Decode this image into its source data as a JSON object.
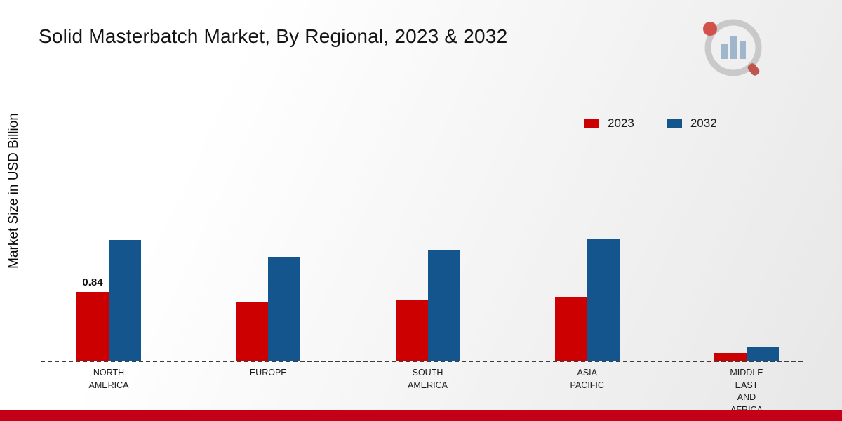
{
  "chart_data": {
    "type": "bar",
    "title": "Solid Masterbatch Market, By Regional, 2023 & 2032",
    "xlabel": "",
    "ylabel": "Market Size in USD Billion",
    "ylim": [
      0,
      1.6
    ],
    "grid": false,
    "legend_position": "top-right",
    "categories": [
      "NORTH AMERICA",
      "EUROPE",
      "SOUTH AMERICA",
      "ASIA PACIFIC",
      "MIDDLE EAST AND AFRICA"
    ],
    "series": [
      {
        "name": "2023",
        "color": "#cc0000",
        "values": [
          0.84,
          0.72,
          0.75,
          0.78,
          0.1
        ]
      },
      {
        "name": "2032",
        "color": "#15558d",
        "values": [
          1.47,
          1.26,
          1.35,
          1.48,
          0.17
        ]
      }
    ],
    "annotations": [
      {
        "series": "2023",
        "category": "NORTH AMERICA",
        "text": "0.84"
      }
    ]
  },
  "legend": [
    {
      "label": "2023",
      "color": "#cc0000"
    },
    {
      "label": "2032",
      "color": "#15558d"
    }
  ],
  "colors": {
    "bottom_strip": "#c40019",
    "baseline": "#3d3d3d"
  }
}
